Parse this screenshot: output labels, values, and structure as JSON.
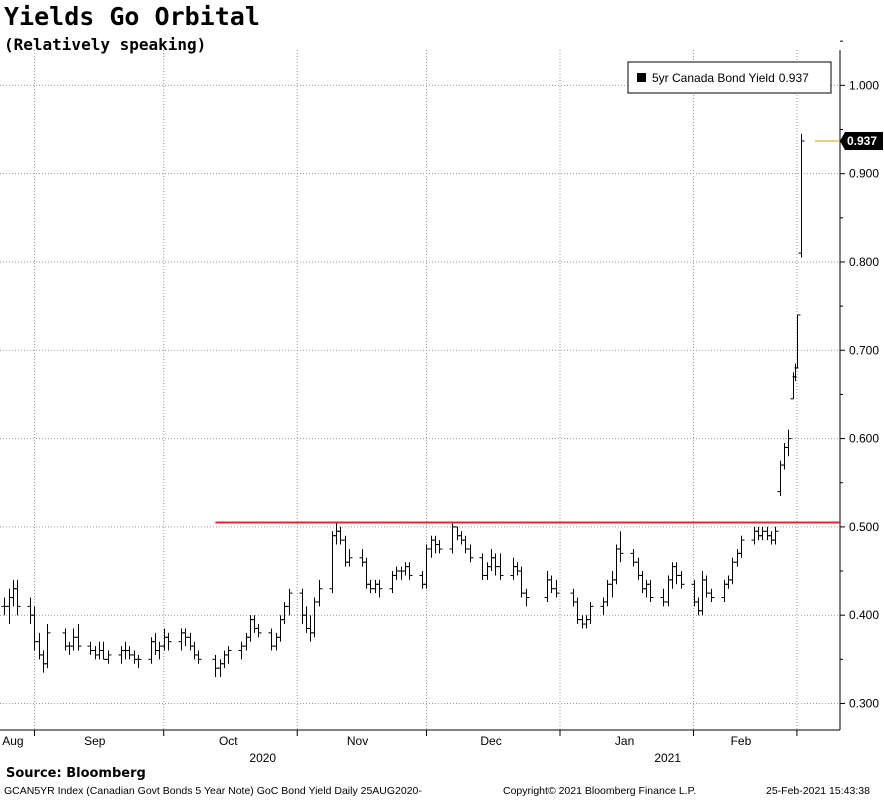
{
  "header": {
    "title": "Yields Go Orbital",
    "subtitle": "(Relatively speaking)"
  },
  "legend": {
    "label": "5yr Canada Bond Yield",
    "value": "0.937"
  },
  "last_value_tag": "0.937",
  "footer": {
    "source": "Source:  Bloomberg",
    "description": "GCAN5YR Index (Canadian Govt Bonds 5 Year Note) GoC Bond Yield  Daily 25AUG2020-",
    "copyright": "Copyright© 2021 Bloomberg Finance L.P.",
    "timestamp": "25-Feb-2021 15:43:38"
  },
  "colors": {
    "bars": "#000000",
    "resistance": "#e8232b",
    "last_marker": "#c8a000",
    "grid": "#9a9a9a"
  },
  "chart_data": {
    "type": "ohlc",
    "title": "Yields Go Orbital",
    "subtitle": "(Relatively speaking)",
    "series_name": "5yr Canada Bond Yield",
    "y_axis_side": "right",
    "ylim": [
      0.27,
      1.04
    ],
    "yticks": [
      0.3,
      0.4,
      0.5,
      0.6,
      0.7,
      0.8,
      0.9,
      1.0
    ],
    "ytick_labels": [
      "0.300",
      "0.400",
      "0.500",
      "0.600",
      "0.700",
      "0.800",
      "0.900",
      "1.000"
    ],
    "x_start": "2020-08-25",
    "x_end": "2021-02-25",
    "x_domain": [
      "2020-08-24",
      "2021-03-07"
    ],
    "month_ticks": [
      {
        "date": "2020-09-01",
        "label": "Aug",
        "label_date": "2020-08-27"
      },
      {
        "date": "2020-10-01",
        "label": "Sep",
        "label_date": "2020-09-15"
      },
      {
        "date": "2020-11-01",
        "label": "Oct",
        "label_date": "2020-10-16"
      },
      {
        "date": "2020-12-01",
        "label": "Nov",
        "label_date": "2020-11-15"
      },
      {
        "date": "2021-01-01",
        "label": "Dec",
        "label_date": "2020-12-16"
      },
      {
        "date": "2021-02-01",
        "label": "Jan",
        "label_date": "2021-01-16"
      },
      {
        "date": "2021-02-25",
        "label": "Feb",
        "label_date": "2021-02-12"
      }
    ],
    "year_labels": [
      {
        "label": "2020",
        "date": "2020-10-24"
      },
      {
        "label": "2021",
        "date": "2021-01-26"
      }
    ],
    "resistance_line": {
      "value": 0.505,
      "from": "2020-10-13",
      "to": "2021-02-25"
    },
    "last_value": 0.937,
    "grid": true,
    "legend_position": "top-right",
    "ohlc": [
      {
        "date": "2020-08-25",
        "o": 0.41,
        "h": 0.42,
        "l": 0.4,
        "c": 0.41
      },
      {
        "date": "2020-08-26",
        "o": 0.41,
        "h": 0.43,
        "l": 0.39,
        "c": 0.42
      },
      {
        "date": "2020-08-27",
        "o": 0.42,
        "h": 0.44,
        "l": 0.41,
        "c": 0.43
      },
      {
        "date": "2020-08-28",
        "o": 0.43,
        "h": 0.44,
        "l": 0.4,
        "c": 0.41
      },
      {
        "date": "2020-08-31",
        "o": 0.41,
        "h": 0.42,
        "l": 0.39,
        "c": 0.4
      },
      {
        "date": "2020-09-01",
        "o": 0.4,
        "h": 0.41,
        "l": 0.36,
        "c": 0.37
      },
      {
        "date": "2020-09-02",
        "o": 0.37,
        "h": 0.38,
        "l": 0.35,
        "c": 0.355
      },
      {
        "date": "2020-09-03",
        "o": 0.355,
        "h": 0.36,
        "l": 0.335,
        "c": 0.345
      },
      {
        "date": "2020-09-04",
        "o": 0.345,
        "h": 0.39,
        "l": 0.34,
        "c": 0.38
      },
      {
        "date": "2020-09-08",
        "o": 0.38,
        "h": 0.385,
        "l": 0.36,
        "c": 0.365
      },
      {
        "date": "2020-09-09",
        "o": 0.365,
        "h": 0.37,
        "l": 0.355,
        "c": 0.365
      },
      {
        "date": "2020-09-10",
        "o": 0.365,
        "h": 0.385,
        "l": 0.36,
        "c": 0.375
      },
      {
        "date": "2020-09-11",
        "o": 0.375,
        "h": 0.39,
        "l": 0.36,
        "c": 0.365
      },
      {
        "date": "2020-09-14",
        "o": 0.365,
        "h": 0.37,
        "l": 0.355,
        "c": 0.36
      },
      {
        "date": "2020-09-15",
        "o": 0.36,
        "h": 0.365,
        "l": 0.35,
        "c": 0.355
      },
      {
        "date": "2020-09-16",
        "o": 0.355,
        "h": 0.37,
        "l": 0.35,
        "c": 0.36
      },
      {
        "date": "2020-09-17",
        "o": 0.36,
        "h": 0.37,
        "l": 0.35,
        "c": 0.35
      },
      {
        "date": "2020-09-18",
        "o": 0.35,
        "h": 0.36,
        "l": 0.345,
        "c": 0.355
      },
      {
        "date": "2020-09-21",
        "o": 0.355,
        "h": 0.365,
        "l": 0.345,
        "c": 0.36
      },
      {
        "date": "2020-09-22",
        "o": 0.36,
        "h": 0.37,
        "l": 0.35,
        "c": 0.36
      },
      {
        "date": "2020-09-23",
        "o": 0.36,
        "h": 0.365,
        "l": 0.35,
        "c": 0.355
      },
      {
        "date": "2020-09-24",
        "o": 0.355,
        "h": 0.36,
        "l": 0.345,
        "c": 0.35
      },
      {
        "date": "2020-09-25",
        "o": 0.35,
        "h": 0.355,
        "l": 0.34,
        "c": 0.35
      },
      {
        "date": "2020-09-28",
        "o": 0.35,
        "h": 0.375,
        "l": 0.345,
        "c": 0.37
      },
      {
        "date": "2020-09-29",
        "o": 0.37,
        "h": 0.38,
        "l": 0.355,
        "c": 0.36
      },
      {
        "date": "2020-09-30",
        "o": 0.36,
        "h": 0.37,
        "l": 0.35,
        "c": 0.365
      },
      {
        "date": "2020-10-01",
        "o": 0.365,
        "h": 0.385,
        "l": 0.36,
        "c": 0.375
      },
      {
        "date": "2020-10-02",
        "o": 0.375,
        "h": 0.38,
        "l": 0.36,
        "c": 0.37
      },
      {
        "date": "2020-10-05",
        "o": 0.37,
        "h": 0.385,
        "l": 0.36,
        "c": 0.38
      },
      {
        "date": "2020-10-06",
        "o": 0.38,
        "h": 0.385,
        "l": 0.365,
        "c": 0.375
      },
      {
        "date": "2020-10-07",
        "o": 0.375,
        "h": 0.38,
        "l": 0.36,
        "c": 0.365
      },
      {
        "date": "2020-10-08",
        "o": 0.365,
        "h": 0.37,
        "l": 0.35,
        "c": 0.355
      },
      {
        "date": "2020-10-09",
        "o": 0.355,
        "h": 0.36,
        "l": 0.345,
        "c": 0.35
      },
      {
        "date": "2020-10-13",
        "o": 0.35,
        "h": 0.355,
        "l": 0.33,
        "c": 0.34
      },
      {
        "date": "2020-10-14",
        "o": 0.34,
        "h": 0.35,
        "l": 0.33,
        "c": 0.345
      },
      {
        "date": "2020-10-15",
        "o": 0.345,
        "h": 0.36,
        "l": 0.34,
        "c": 0.355
      },
      {
        "date": "2020-10-16",
        "o": 0.355,
        "h": 0.365,
        "l": 0.345,
        "c": 0.36
      },
      {
        "date": "2020-10-19",
        "o": 0.36,
        "h": 0.37,
        "l": 0.35,
        "c": 0.365
      },
      {
        "date": "2020-10-20",
        "o": 0.365,
        "h": 0.38,
        "l": 0.36,
        "c": 0.375
      },
      {
        "date": "2020-10-21",
        "o": 0.375,
        "h": 0.4,
        "l": 0.37,
        "c": 0.395
      },
      {
        "date": "2020-10-22",
        "o": 0.395,
        "h": 0.4,
        "l": 0.38,
        "c": 0.385
      },
      {
        "date": "2020-10-23",
        "o": 0.385,
        "h": 0.39,
        "l": 0.375,
        "c": 0.38
      },
      {
        "date": "2020-10-26",
        "o": 0.38,
        "h": 0.385,
        "l": 0.36,
        "c": 0.365
      },
      {
        "date": "2020-10-27",
        "o": 0.365,
        "h": 0.38,
        "l": 0.36,
        "c": 0.375
      },
      {
        "date": "2020-10-28",
        "o": 0.375,
        "h": 0.4,
        "l": 0.37,
        "c": 0.395
      },
      {
        "date": "2020-10-29",
        "o": 0.395,
        "h": 0.415,
        "l": 0.39,
        "c": 0.41
      },
      {
        "date": "2020-10-30",
        "o": 0.41,
        "h": 0.43,
        "l": 0.4,
        "c": 0.425
      },
      {
        "date": "2020-11-02",
        "o": 0.425,
        "h": 0.43,
        "l": 0.39,
        "c": 0.4
      },
      {
        "date": "2020-11-03",
        "o": 0.4,
        "h": 0.41,
        "l": 0.38,
        "c": 0.385
      },
      {
        "date": "2020-11-04",
        "o": 0.385,
        "h": 0.4,
        "l": 0.37,
        "c": 0.38
      },
      {
        "date": "2020-11-05",
        "o": 0.38,
        "h": 0.42,
        "l": 0.375,
        "c": 0.415
      },
      {
        "date": "2020-11-06",
        "o": 0.415,
        "h": 0.44,
        "l": 0.41,
        "c": 0.43
      },
      {
        "date": "2020-11-09",
        "o": 0.43,
        "h": 0.495,
        "l": 0.425,
        "c": 0.49
      },
      {
        "date": "2020-11-10",
        "o": 0.49,
        "h": 0.505,
        "l": 0.48,
        "c": 0.495
      },
      {
        "date": "2020-11-11",
        "o": 0.495,
        "h": 0.5,
        "l": 0.48,
        "c": 0.485
      },
      {
        "date": "2020-11-12",
        "o": 0.485,
        "h": 0.49,
        "l": 0.455,
        "c": 0.46
      },
      {
        "date": "2020-11-13",
        "o": 0.46,
        "h": 0.475,
        "l": 0.455,
        "c": 0.465
      },
      {
        "date": "2020-11-16",
        "o": 0.465,
        "h": 0.475,
        "l": 0.455,
        "c": 0.46
      },
      {
        "date": "2020-11-17",
        "o": 0.46,
        "h": 0.465,
        "l": 0.43,
        "c": 0.435
      },
      {
        "date": "2020-11-18",
        "o": 0.435,
        "h": 0.44,
        "l": 0.425,
        "c": 0.43
      },
      {
        "date": "2020-11-19",
        "o": 0.43,
        "h": 0.44,
        "l": 0.425,
        "c": 0.435
      },
      {
        "date": "2020-11-20",
        "o": 0.435,
        "h": 0.44,
        "l": 0.42,
        "c": 0.43
      },
      {
        "date": "2020-11-23",
        "o": 0.43,
        "h": 0.45,
        "l": 0.425,
        "c": 0.445
      },
      {
        "date": "2020-11-24",
        "o": 0.445,
        "h": 0.455,
        "l": 0.44,
        "c": 0.45
      },
      {
        "date": "2020-11-25",
        "o": 0.45,
        "h": 0.455,
        "l": 0.44,
        "c": 0.45
      },
      {
        "date": "2020-11-26",
        "o": 0.45,
        "h": 0.46,
        "l": 0.445,
        "c": 0.455
      },
      {
        "date": "2020-11-27",
        "o": 0.455,
        "h": 0.46,
        "l": 0.44,
        "c": 0.445
      },
      {
        "date": "2020-11-30",
        "o": 0.445,
        "h": 0.45,
        "l": 0.43,
        "c": 0.435
      },
      {
        "date": "2020-12-01",
        "o": 0.435,
        "h": 0.48,
        "l": 0.43,
        "c": 0.475
      },
      {
        "date": "2020-12-02",
        "o": 0.475,
        "h": 0.49,
        "l": 0.465,
        "c": 0.485
      },
      {
        "date": "2020-12-03",
        "o": 0.485,
        "h": 0.49,
        "l": 0.47,
        "c": 0.48
      },
      {
        "date": "2020-12-04",
        "o": 0.48,
        "h": 0.485,
        "l": 0.47,
        "c": 0.475
      },
      {
        "date": "2020-12-07",
        "o": 0.475,
        "h": 0.505,
        "l": 0.47,
        "c": 0.5
      },
      {
        "date": "2020-12-08",
        "o": 0.5,
        "h": 0.5,
        "l": 0.485,
        "c": 0.49
      },
      {
        "date": "2020-12-09",
        "o": 0.49,
        "h": 0.495,
        "l": 0.48,
        "c": 0.485
      },
      {
        "date": "2020-12-10",
        "o": 0.485,
        "h": 0.49,
        "l": 0.47,
        "c": 0.475
      },
      {
        "date": "2020-12-11",
        "o": 0.475,
        "h": 0.48,
        "l": 0.46,
        "c": 0.465
      },
      {
        "date": "2020-12-14",
        "o": 0.465,
        "h": 0.47,
        "l": 0.44,
        "c": 0.445
      },
      {
        "date": "2020-12-15",
        "o": 0.445,
        "h": 0.46,
        "l": 0.44,
        "c": 0.455
      },
      {
        "date": "2020-12-16",
        "o": 0.455,
        "h": 0.475,
        "l": 0.45,
        "c": 0.465
      },
      {
        "date": "2020-12-17",
        "o": 0.465,
        "h": 0.47,
        "l": 0.445,
        "c": 0.455
      },
      {
        "date": "2020-12-18",
        "o": 0.455,
        "h": 0.47,
        "l": 0.44,
        "c": 0.445
      },
      {
        "date": "2020-12-21",
        "o": 0.445,
        "h": 0.465,
        "l": 0.44,
        "c": 0.455
      },
      {
        "date": "2020-12-22",
        "o": 0.455,
        "h": 0.46,
        "l": 0.445,
        "c": 0.45
      },
      {
        "date": "2020-12-23",
        "o": 0.45,
        "h": 0.455,
        "l": 0.42,
        "c": 0.425
      },
      {
        "date": "2020-12-24",
        "o": 0.425,
        "h": 0.43,
        "l": 0.41,
        "c": 0.42
      },
      {
        "date": "2020-12-29",
        "o": 0.42,
        "h": 0.45,
        "l": 0.415,
        "c": 0.44
      },
      {
        "date": "2020-12-30",
        "o": 0.44,
        "h": 0.445,
        "l": 0.425,
        "c": 0.43
      },
      {
        "date": "2020-12-31",
        "o": 0.43,
        "h": 0.44,
        "l": 0.42,
        "c": 0.425
      },
      {
        "date": "2021-01-04",
        "o": 0.425,
        "h": 0.43,
        "l": 0.41,
        "c": 0.415
      },
      {
        "date": "2021-01-05",
        "o": 0.415,
        "h": 0.42,
        "l": 0.39,
        "c": 0.395
      },
      {
        "date": "2021-01-06",
        "o": 0.395,
        "h": 0.4,
        "l": 0.385,
        "c": 0.39
      },
      {
        "date": "2021-01-07",
        "o": 0.39,
        "h": 0.4,
        "l": 0.385,
        "c": 0.395
      },
      {
        "date": "2021-01-08",
        "o": 0.395,
        "h": 0.415,
        "l": 0.39,
        "c": 0.41
      },
      {
        "date": "2021-01-11",
        "o": 0.41,
        "h": 0.42,
        "l": 0.4,
        "c": 0.415
      },
      {
        "date": "2021-01-12",
        "o": 0.415,
        "h": 0.44,
        "l": 0.41,
        "c": 0.435
      },
      {
        "date": "2021-01-13",
        "o": 0.435,
        "h": 0.45,
        "l": 0.42,
        "c": 0.44
      },
      {
        "date": "2021-01-14",
        "o": 0.44,
        "h": 0.48,
        "l": 0.435,
        "c": 0.475
      },
      {
        "date": "2021-01-15",
        "o": 0.475,
        "h": 0.495,
        "l": 0.46,
        "c": 0.47
      },
      {
        "date": "2021-01-18",
        "o": 0.47,
        "h": 0.475,
        "l": 0.455,
        "c": 0.46
      },
      {
        "date": "2021-01-19",
        "o": 0.46,
        "h": 0.465,
        "l": 0.44,
        "c": 0.445
      },
      {
        "date": "2021-01-20",
        "o": 0.445,
        "h": 0.45,
        "l": 0.425,
        "c": 0.43
      },
      {
        "date": "2021-01-21",
        "o": 0.43,
        "h": 0.44,
        "l": 0.42,
        "c": 0.435
      },
      {
        "date": "2021-01-22",
        "o": 0.435,
        "h": 0.44,
        "l": 0.415,
        "c": 0.42
      },
      {
        "date": "2021-01-25",
        "o": 0.42,
        "h": 0.43,
        "l": 0.41,
        "c": 0.415
      },
      {
        "date": "2021-01-26",
        "o": 0.415,
        "h": 0.445,
        "l": 0.41,
        "c": 0.44
      },
      {
        "date": "2021-01-27",
        "o": 0.44,
        "h": 0.46,
        "l": 0.43,
        "c": 0.455
      },
      {
        "date": "2021-01-28",
        "o": 0.455,
        "h": 0.46,
        "l": 0.435,
        "c": 0.445
      },
      {
        "date": "2021-01-29",
        "o": 0.445,
        "h": 0.45,
        "l": 0.43,
        "c": 0.435
      },
      {
        "date": "2021-02-01",
        "o": 0.435,
        "h": 0.44,
        "l": 0.41,
        "c": 0.415
      },
      {
        "date": "2021-02-02",
        "o": 0.415,
        "h": 0.42,
        "l": 0.4,
        "c": 0.405
      },
      {
        "date": "2021-02-03",
        "o": 0.405,
        "h": 0.45,
        "l": 0.4,
        "c": 0.44
      },
      {
        "date": "2021-02-04",
        "o": 0.44,
        "h": 0.445,
        "l": 0.42,
        "c": 0.425
      },
      {
        "date": "2021-02-05",
        "o": 0.425,
        "h": 0.43,
        "l": 0.415,
        "c": 0.42
      },
      {
        "date": "2021-02-08",
        "o": 0.42,
        "h": 0.44,
        "l": 0.415,
        "c": 0.435
      },
      {
        "date": "2021-02-09",
        "o": 0.435,
        "h": 0.445,
        "l": 0.43,
        "c": 0.44
      },
      {
        "date": "2021-02-10",
        "o": 0.44,
        "h": 0.465,
        "l": 0.435,
        "c": 0.46
      },
      {
        "date": "2021-02-11",
        "o": 0.46,
        "h": 0.475,
        "l": 0.455,
        "c": 0.47
      },
      {
        "date": "2021-02-12",
        "o": 0.47,
        "h": 0.49,
        "l": 0.465,
        "c": 0.485
      },
      {
        "date": "2021-02-15",
        "o": 0.485,
        "h": 0.5,
        "l": 0.48,
        "c": 0.495
      },
      {
        "date": "2021-02-16",
        "o": 0.495,
        "h": 0.5,
        "l": 0.485,
        "c": 0.49
      },
      {
        "date": "2021-02-17",
        "o": 0.49,
        "h": 0.5,
        "l": 0.485,
        "c": 0.495
      },
      {
        "date": "2021-02-18",
        "o": 0.495,
        "h": 0.5,
        "l": 0.485,
        "c": 0.49
      },
      {
        "date": "2021-02-19",
        "o": 0.49,
        "h": 0.495,
        "l": 0.48,
        "c": 0.485
      },
      {
        "date": "2021-02-20",
        "o": 0.485,
        "h": 0.5,
        "l": 0.48,
        "c": 0.495
      },
      {
        "date": "2021-02-21",
        "o": 0.54,
        "h": 0.575,
        "l": 0.535,
        "c": 0.57
      },
      {
        "date": "2021-02-22",
        "o": 0.57,
        "h": 0.595,
        "l": 0.565,
        "c": 0.59
      },
      {
        "date": "2021-02-23",
        "o": 0.59,
        "h": 0.61,
        "l": 0.58,
        "c": 0.6
      },
      {
        "date": "2021-02-24",
        "o": 0.645,
        "h": 0.675,
        "l": 0.645,
        "c": 0.67
      },
      {
        "date": "2021-02-24T12",
        "o": 0.67,
        "h": 0.685,
        "l": 0.665,
        "c": 0.68
      },
      {
        "date": "2021-02-25",
        "o": 0.68,
        "h": 0.74,
        "l": 0.68,
        "c": 0.74
      },
      {
        "date": "2021-02-25T20",
        "o": 0.81,
        "h": 0.945,
        "l": 0.805,
        "c": 0.937
      }
    ]
  }
}
